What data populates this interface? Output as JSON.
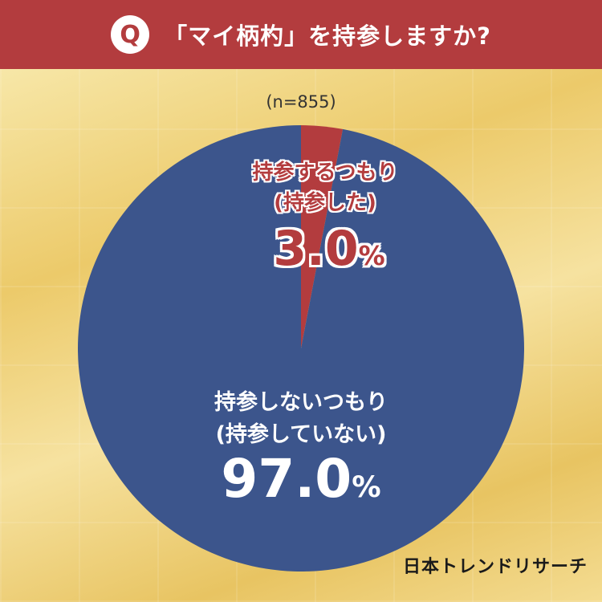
{
  "header": {
    "badge": "Q",
    "question": "「マイ柄杓」を持参しますか?"
  },
  "sample_size": "(n=855)",
  "brand": "日本トレンドリサーチ",
  "colors": {
    "header": "#b33c3e",
    "bring": "#b33c3e",
    "not_bring": "#3c558c"
  },
  "chart_data": {
    "type": "pie",
    "title": "「マイ柄杓」を持参しますか?",
    "n": 855,
    "slices": [
      {
        "label": "持参するつもり",
        "sublabel": "(持参した)",
        "value": 3.0,
        "value_text": "3.0",
        "unit": "%"
      },
      {
        "label": "持参しないつもり",
        "sublabel": "(持参していない)",
        "value": 97.0,
        "value_text": "97.0",
        "unit": "%"
      }
    ]
  }
}
